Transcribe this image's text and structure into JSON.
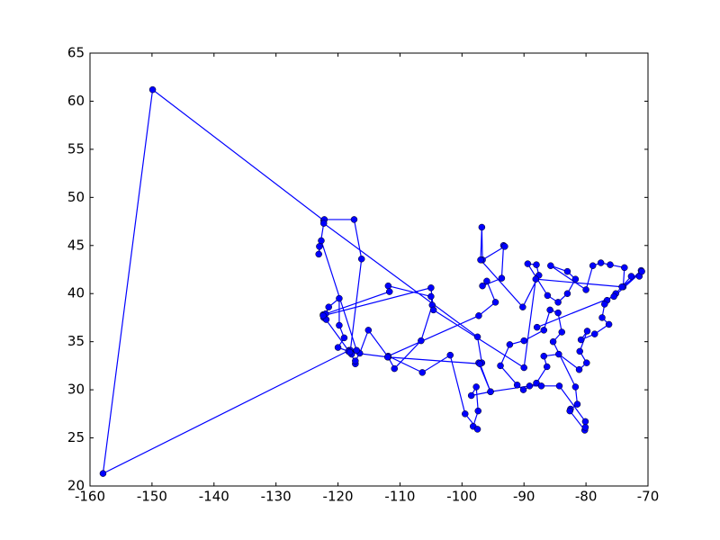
{
  "chart_data": {
    "type": "line",
    "color": "#0000ff",
    "marker": "o",
    "xlim": [
      -160,
      -70
    ],
    "ylim": [
      20,
      65
    ],
    "xticks": [
      -160,
      -150,
      -140,
      -130,
      -120,
      -110,
      -100,
      -90,
      -80,
      -70
    ],
    "yticks": [
      20,
      25,
      30,
      35,
      40,
      45,
      50,
      55,
      60,
      65
    ],
    "x": [
      -118.2,
      -157.9,
      -149.9,
      -122.3,
      -122.2,
      -117.4,
      -116.2,
      -118.0,
      -117.9,
      -117.2,
      -117.2,
      -116.5,
      -115.1,
      -111.9,
      -110.9,
      -106.6,
      -104.8,
      -105.0,
      -111.9,
      -111.7,
      -122.4,
      -122.3,
      -121.9,
      -122.0,
      -121.5,
      -119.8,
      -119.8,
      -119.0,
      -120.0,
      -118.3,
      -117.8,
      -117.0,
      -122.7,
      -123.0,
      -123.1,
      -122.3,
      -97.5,
      -96.8,
      -97.3,
      -95.4,
      -98.5,
      -97.7,
      -97.4,
      -98.2,
      -97.5,
      -99.5,
      -101.9,
      -106.4,
      -111.9,
      -97.3,
      -94.6,
      -96.0,
      -96.7,
      -93.6,
      -93.3,
      -93.1,
      -96.7,
      -96.8,
      -97.0,
      -90.2,
      -87.6,
      -88.0,
      -89.4,
      -86.2,
      -84.5,
      -83.0,
      -81.7,
      -83.0,
      -85.7,
      -80.0,
      -78.9,
      -77.6,
      -76.1,
      -73.8,
      -74.0,
      -71.1,
      -71.4,
      -72.7,
      -75.2,
      -76.6,
      -77.0,
      -77.4,
      -76.3,
      -78.6,
      -80.8,
      -79.8,
      -81.0,
      -79.9,
      -81.1,
      -84.4,
      -86.8,
      -86.3,
      -88.0,
      -90.1,
      -91.1,
      -93.8,
      -92.3,
      -90.0,
      -86.8,
      -85.8,
      -84.5,
      -83.9,
      -85.3,
      -81.7,
      -81.4,
      -82.5,
      -82.6,
      -80.2,
      -80.1,
      -80.1,
      -84.3,
      -87.2,
      -89.1,
      -95.4,
      -97.1,
      -112.0,
      -118.1,
      -122.4,
      -105.0,
      -104.6,
      -90.0,
      -88.1,
      -74.2,
      -71.0,
      -75.5,
      -87.9
    ],
    "values": [
      34.1,
      21.3,
      61.2,
      47.6,
      47.7,
      47.7,
      43.6,
      34.1,
      33.8,
      32.7,
      33.0,
      33.8,
      36.2,
      33.4,
      32.2,
      35.1,
      38.8,
      39.7,
      40.8,
      40.2,
      37.8,
      37.5,
      37.3,
      37.9,
      38.6,
      39.5,
      36.7,
      35.4,
      34.4,
      34.0,
      33.7,
      34.1,
      45.5,
      44.9,
      44.1,
      47.3,
      35.5,
      32.8,
      32.8,
      29.8,
      29.4,
      30.3,
      27.8,
      26.2,
      25.9,
      27.5,
      33.6,
      31.8,
      33.5,
      37.7,
      39.1,
      41.3,
      40.8,
      41.6,
      45.0,
      44.9,
      43.5,
      46.9,
      43.5,
      38.6,
      41.9,
      43.0,
      43.1,
      39.8,
      39.1,
      40.0,
      41.5,
      42.3,
      42.9,
      40.4,
      42.9,
      43.2,
      43.0,
      42.7,
      40.7,
      42.4,
      41.8,
      41.8,
      40.0,
      39.3,
      38.9,
      37.5,
      36.8,
      35.8,
      35.2,
      36.1,
      34.0,
      32.8,
      32.1,
      33.7,
      33.5,
      32.4,
      30.7,
      30.0,
      30.5,
      32.5,
      34.7,
      35.1,
      36.2,
      38.3,
      38.0,
      36.0,
      35.0,
      30.3,
      28.5,
      28.0,
      27.8,
      25.8,
      26.1,
      26.7,
      30.4,
      30.4,
      30.4,
      29.8,
      32.7,
      33.4,
      33.9,
      37.7,
      40.6,
      38.3,
      32.3,
      41.5,
      40.7,
      42.3,
      39.7,
      36.5
    ]
  }
}
